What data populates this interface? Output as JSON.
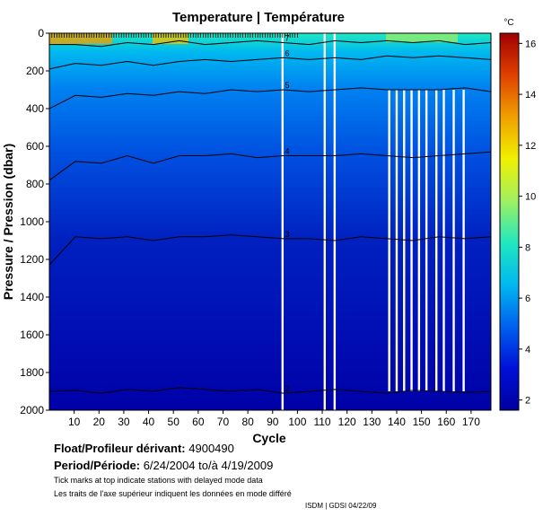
{
  "chart_data": {
    "type": "heatmap",
    "title": "Temperature | Température",
    "xlabel": "Cycle",
    "ylabel": "Pressure / Pression (dbar)",
    "xlim": [
      0,
      178
    ],
    "ylim": [
      2000,
      0
    ],
    "x_ticks": [
      10,
      20,
      30,
      40,
      50,
      60,
      70,
      80,
      90,
      100,
      110,
      120,
      130,
      140,
      150,
      160,
      170
    ],
    "y_ticks": [
      0,
      200,
      400,
      600,
      800,
      1000,
      1200,
      1400,
      1600,
      1800,
      2000
    ],
    "colorbar": {
      "unit": "°C",
      "min": 1.6,
      "max": 16.4,
      "ticks": [
        2,
        4,
        6,
        8,
        10,
        12,
        14,
        16
      ],
      "colors": [
        "#0000a0",
        "#0010d8",
        "#0060f0",
        "#00b8f0",
        "#20e8c0",
        "#a0f060",
        "#f0f000",
        "#f0a000",
        "#e04000",
        "#a00000"
      ]
    },
    "isotherms": [
      {
        "label": "2",
        "pressure": [
          1900,
          1895,
          1910,
          1890,
          1900,
          1880,
          1890,
          1900,
          1890,
          1910,
          1900,
          1890,
          1900,
          1910,
          1895,
          1900,
          1905,
          1900
        ]
      },
      {
        "label": "3",
        "pressure": [
          1230,
          1080,
          1090,
          1080,
          1100,
          1080,
          1080,
          1070,
          1080,
          1090,
          1090,
          1100,
          1080,
          1090,
          1100,
          1080,
          1090,
          1080
        ]
      },
      {
        "label": "4",
        "pressure": [
          780,
          680,
          690,
          650,
          690,
          650,
          650,
          640,
          660,
          650,
          650,
          650,
          640,
          650,
          660,
          650,
          640,
          630
        ]
      },
      {
        "label": "5",
        "pressure": [
          400,
          330,
          340,
          320,
          330,
          310,
          320,
          300,
          310,
          300,
          310,
          300,
          290,
          300,
          300,
          300,
          290,
          310
        ]
      },
      {
        "label": "6",
        "pressure": [
          190,
          160,
          170,
          150,
          170,
          150,
          140,
          150,
          140,
          130,
          140,
          130,
          140,
          120,
          130,
          120,
          130,
          140
        ]
      },
      {
        "label": "7",
        "pressure": [
          60,
          60,
          70,
          50,
          60,
          40,
          60,
          50,
          40,
          50,
          60,
          40,
          50,
          40,
          50,
          40,
          60,
          50
        ]
      }
    ],
    "missing_cycles": [
      94,
      111,
      115,
      137,
      140,
      143,
      146,
      149,
      152,
      156,
      159,
      163,
      167
    ],
    "delayed_mode_tick_cycles": [
      1,
      2,
      3,
      4,
      5,
      6,
      7,
      8,
      9,
      10,
      11,
      12,
      13,
      14,
      15,
      16,
      17,
      18,
      19,
      20,
      21,
      22,
      23,
      24,
      25,
      26,
      27,
      28,
      29,
      30,
      31,
      32,
      33,
      34,
      35,
      36,
      37,
      38,
      39,
      40,
      41,
      42,
      43,
      44,
      45,
      46,
      47,
      48,
      49,
      50,
      51,
      52,
      53,
      54,
      55,
      56,
      57,
      58,
      59,
      60,
      61,
      62,
      63,
      64,
      65,
      66,
      67,
      68,
      69,
      70,
      71,
      72,
      73,
      74,
      75,
      76,
      77,
      78,
      79,
      80,
      81,
      82,
      83,
      84,
      85,
      86,
      87,
      88,
      89,
      90,
      91,
      92,
      93,
      94,
      95,
      96,
      97,
      98,
      99,
      100
    ]
  },
  "info": {
    "float_label": "Float/Profileur dérivant:",
    "float_id": "4900490",
    "period_label": "Period/Période:",
    "period_start": "6/24/2004",
    "period_to": "to/à",
    "period_end": "4/19/2009",
    "note_en": "Tick marks at top indicate stations with delayed mode data",
    "note_fr": "Les traits de l'axe supérieur indiquent les données en mode différé",
    "credit": "ISDM | GDSI  04/22/09"
  }
}
